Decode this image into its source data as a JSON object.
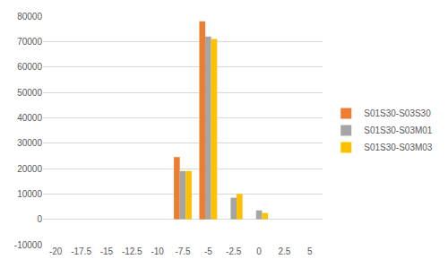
{
  "chart_data": {
    "type": "bar",
    "categories": [
      "-20",
      "-17.5",
      "-15",
      "-12.5",
      "-10",
      "-7.5",
      "-5",
      "-2.5",
      "0",
      "2.5",
      "5"
    ],
    "series": [
      {
        "name": "S01S30-S03S30",
        "color": "#ed7d31",
        "values": [
          0,
          0,
          0,
          0,
          0,
          24500,
          78000,
          0,
          0,
          0,
          0
        ]
      },
      {
        "name": "S01S30-S03M01",
        "color": "#a5a5a5",
        "values": [
          0,
          0,
          0,
          0,
          0,
          19000,
          72000,
          8500,
          3500,
          0,
          0
        ]
      },
      {
        "name": "S01S30-S03M03",
        "color": "#ffc000",
        "values": [
          0,
          0,
          0,
          0,
          0,
          19000,
          71000,
          10000,
          2500,
          0,
          0
        ]
      }
    ],
    "ylim": [
      -10000,
      80000
    ],
    "yticks": [
      -10000,
      0,
      10000,
      20000,
      30000,
      40000,
      50000,
      60000,
      70000,
      80000
    ],
    "grid": true,
    "legend": "right"
  }
}
